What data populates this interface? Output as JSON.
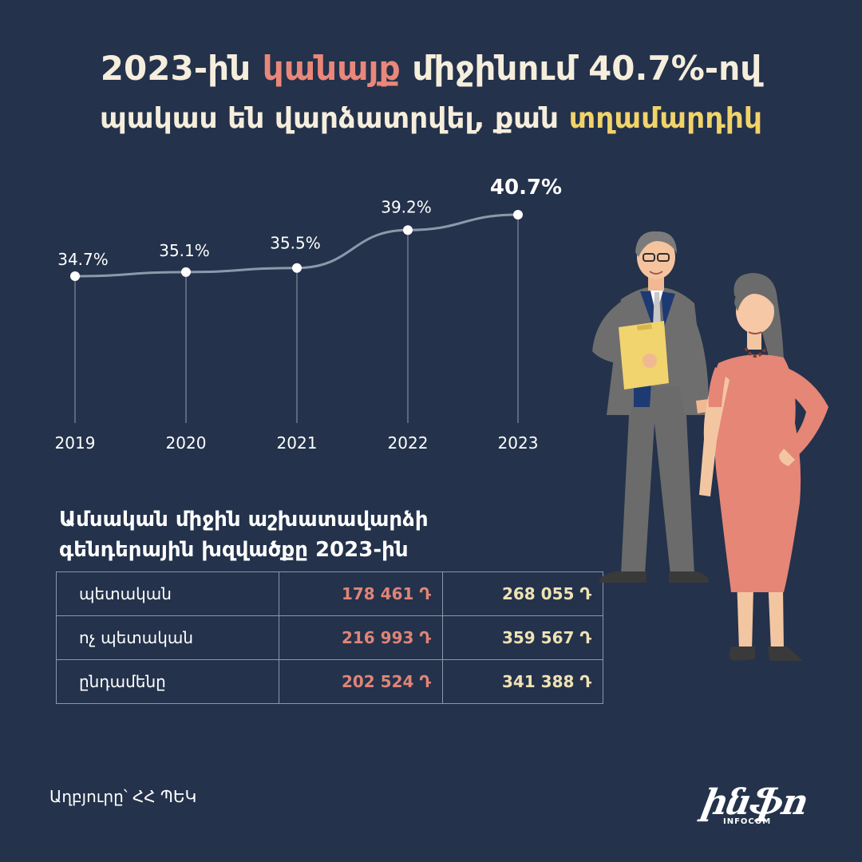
{
  "title": {
    "line1_pre": "2023-ին",
    "line1_highlight": "կանայք",
    "line1_post": "միջինում 40.7%-ով",
    "line2_pre": "պակաս են վարձատրվել, քան",
    "line2_highlight": "տղամարդիկ"
  },
  "chart_data": {
    "type": "line",
    "title": "",
    "xlabel": "",
    "ylabel": "",
    "categories": [
      "2019",
      "2020",
      "2021",
      "2022",
      "2023"
    ],
    "values": [
      34.7,
      35.1,
      35.5,
      39.2,
      40.7
    ],
    "data_labels": [
      "34.7%",
      "35.1%",
      "35.5%",
      "39.2%",
      "40.7%"
    ],
    "ylim": [
      25,
      42
    ],
    "grid": "vertical drop lines",
    "colors": {
      "line": "#8d98ab",
      "marker": "#ffffff",
      "drop": "#6f7a8e"
    }
  },
  "wage_table": {
    "title": "Ամսական միջին աշխատավարձի գենդերային խզվածքը 2023-ին",
    "rows": [
      {
        "label": "պետական",
        "female": "178 461 Դ",
        "male": "268 055 Դ"
      },
      {
        "label": "ոչ պետական",
        "female": "216 993 Դ",
        "male": "359 567 Դ"
      },
      {
        "label": "ընդամենը",
        "female": "202 524 Դ",
        "male": "341 388 Դ"
      }
    ]
  },
  "source": "Աղբյուրը՝ ՀՀ ՊԵԿ",
  "logo": {
    "text": "ինֆո",
    "subtext": "INFOCOM"
  },
  "colors": {
    "background": "#24324b",
    "accent_female": "#e9877a",
    "accent_male": "#f1d36a"
  }
}
